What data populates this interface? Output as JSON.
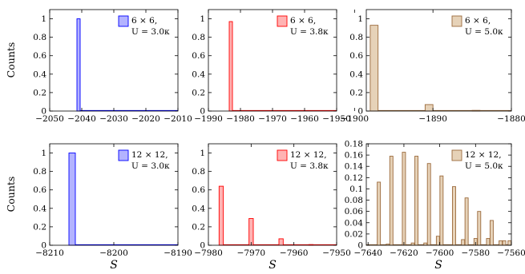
{
  "figure": {
    "ylabel": "Counts",
    "xlabel": "S"
  },
  "chart_data": [
    {
      "type": "bar",
      "legend": [
        "6 × 6,",
        "U = 3.0κ"
      ],
      "color": {
        "fill": "#b3b3ff",
        "stroke": "#0000ff"
      },
      "xlim": [
        -2050,
        -2010
      ],
      "ylim": [
        0,
        1.1
      ],
      "xticks": [
        -2050,
        -2040,
        -2030,
        -2020,
        -2010
      ],
      "yticks": [
        0,
        0.2,
        0.4,
        0.6,
        0.8,
        1
      ],
      "bar_width": 1,
      "bars": [
        {
          "x": -2041,
          "y": 1.0
        }
      ],
      "baseline_range": [
        -2041,
        -2010
      ]
    },
    {
      "type": "bar",
      "legend": [
        "6 × 6,",
        "U = 3.8κ"
      ],
      "color": {
        "fill": "#ffb3b3",
        "stroke": "#ff0000"
      },
      "xlim": [
        -1990,
        -1950
      ],
      "ylim": [
        0,
        1.1
      ],
      "xticks": [
        -1990,
        -1980,
        -1970,
        -1960,
        -1950
      ],
      "yticks": [
        0,
        0.2,
        0.4,
        0.6,
        0.8,
        1
      ],
      "bar_width": 1,
      "bars": [
        {
          "x": -1983,
          "y": 0.97
        }
      ],
      "baseline_range": [
        -1983,
        -1950
      ]
    },
    {
      "type": "bar",
      "legend": [
        "6 × 6,",
        "U = 5.0κ"
      ],
      "color": {
        "fill": "#e6d2b8",
        "stroke": "#9b6a3c"
      },
      "xlim": [
        -1898.5,
        -1880
      ],
      "ylim": [
        0,
        1.1
      ],
      "xticks": [
        -1900,
        -1890,
        -1880
      ],
      "yticks": [
        0,
        0.2,
        0.4,
        0.6,
        0.8,
        1
      ],
      "bar_width": 1,
      "bars": [
        {
          "x": -1897.5,
          "y": 0.93
        },
        {
          "x": -1890.5,
          "y": 0.07
        },
        {
          "x": -1884.5,
          "y": 0.005
        }
      ],
      "baseline_range": [
        -1898,
        -1880
      ]
    },
    {
      "type": "bar",
      "legend": [
        "12 × 12,",
        "U = 3.0κ"
      ],
      "color": {
        "fill": "#b3b3ff",
        "stroke": "#0000ff"
      },
      "xlim": [
        -8210,
        -8190
      ],
      "ylim": [
        0,
        1.1
      ],
      "xticks": [
        -8210,
        -8200,
        -8190
      ],
      "yticks": [
        0,
        0.2,
        0.4,
        0.6,
        0.8,
        1
      ],
      "bar_width": 1,
      "bars": [
        {
          "x": -8206.5,
          "y": 1.0
        }
      ],
      "baseline_range": [
        -8207,
        -8190
      ]
    },
    {
      "type": "bar",
      "legend": [
        "12 × 12,",
        "U = 3.8κ"
      ],
      "color": {
        "fill": "#ffb3b3",
        "stroke": "#ff0000"
      },
      "xlim": [
        -7980,
        -7950
      ],
      "ylim": [
        0,
        1.1
      ],
      "xticks": [
        -7980,
        -7970,
        -7960,
        -7950
      ],
      "yticks": [
        0,
        0.2,
        0.4,
        0.6,
        0.8,
        1
      ],
      "bar_width": 1,
      "bars": [
        {
          "x": -7977,
          "y": 0.64
        },
        {
          "x": -7970,
          "y": 0.29
        },
        {
          "x": -7963,
          "y": 0.07
        },
        {
          "x": -7956,
          "y": 0.005
        }
      ],
      "baseline_range": [
        -7977,
        -7950
      ]
    },
    {
      "type": "bar",
      "legend": [
        "12 × 12,",
        "U = 5.0κ"
      ],
      "color": {
        "fill": "#e6d2b8",
        "stroke": "#9b6a3c"
      },
      "xlim": [
        -7641,
        -7560
      ],
      "ylim": [
        0,
        0.18
      ],
      "xticks": [
        -7640,
        -7620,
        -7600,
        -7580,
        -7560
      ],
      "yticks": [
        0,
        0.02,
        0.04,
        0.06,
        0.08,
        0.1,
        0.12,
        0.14,
        0.16,
        0.18
      ],
      "bar_width": 1.6,
      "bars": [
        {
          "x": -7634,
          "y": 0.112
        },
        {
          "x": -7627,
          "y": 0.158
        },
        {
          "x": -7620,
          "y": 0.165
        },
        {
          "x": -7613,
          "y": 0.158
        },
        {
          "x": -7606,
          "y": 0.145
        },
        {
          "x": -7599,
          "y": 0.123
        },
        {
          "x": -7592,
          "y": 0.104
        },
        {
          "x": -7585,
          "y": 0.084
        },
        {
          "x": -7578,
          "y": 0.06
        },
        {
          "x": -7571,
          "y": 0.044
        },
        {
          "x": -7564,
          "y": 0.008
        },
        {
          "x": -7601,
          "y": 0.016
        },
        {
          "x": -7615,
          "y": 0.004
        },
        {
          "x": -7608,
          "y": 0.004
        },
        {
          "x": -7587,
          "y": 0.01
        },
        {
          "x": -7580,
          "y": 0.012
        },
        {
          "x": -7573,
          "y": 0.012
        },
        {
          "x": -7566,
          "y": 0.008
        },
        {
          "x": -7561,
          "y": 0.008
        },
        {
          "x": -7629,
          "y": 0.002
        }
      ],
      "baseline_range": [
        -7641,
        -7560
      ]
    }
  ]
}
